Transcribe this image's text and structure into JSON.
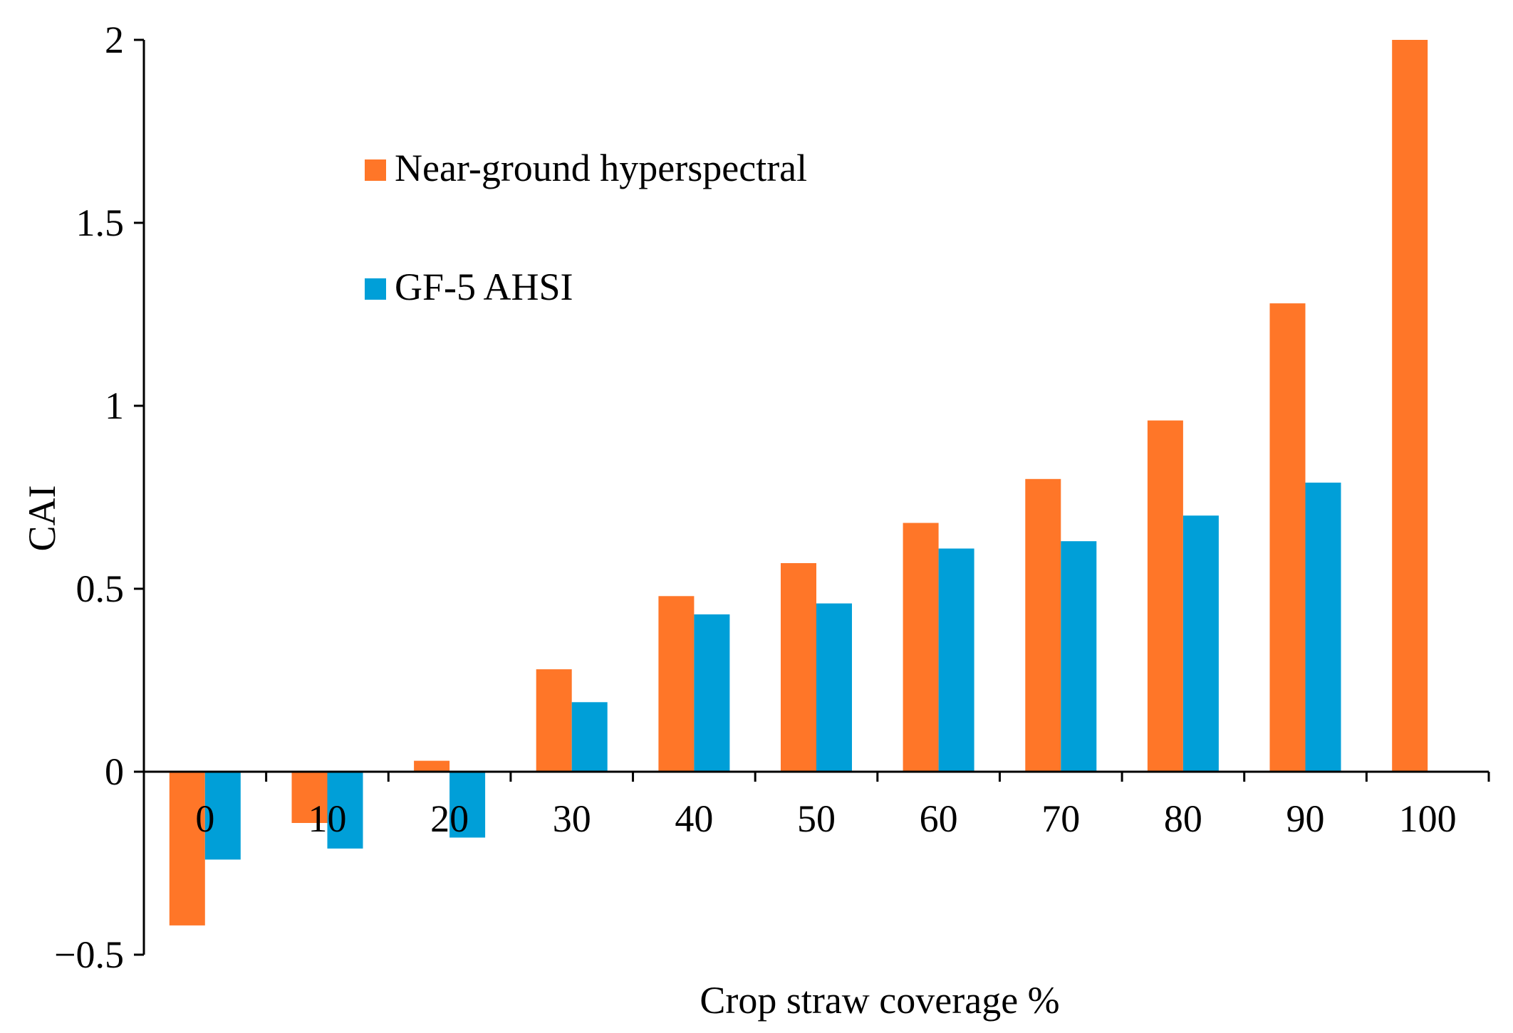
{
  "chart_data": {
    "type": "bar",
    "title": "",
    "xlabel": "Crop straw coverage %",
    "ylabel": "CAI",
    "categories": [
      "0",
      "10",
      "20",
      "30",
      "40",
      "50",
      "60",
      "70",
      "80",
      "90",
      "100"
    ],
    "series": [
      {
        "name": "Near-ground hyperspectral",
        "color": "#ff7628",
        "values": [
          -0.42,
          -0.14,
          0.03,
          0.28,
          0.48,
          0.57,
          0.68,
          0.8,
          0.96,
          1.28,
          2.0
        ]
      },
      {
        "name": "GF-5 AHSI",
        "color": "#009fd8",
        "values": [
          -0.24,
          -0.21,
          -0.18,
          0.19,
          0.43,
          0.46,
          0.61,
          0.63,
          0.7,
          0.79,
          null
        ]
      }
    ],
    "ylim": [
      -0.5,
      2
    ],
    "yticks": [
      -0.5,
      0,
      0.5,
      1,
      1.5,
      2
    ],
    "ytick_labels": [
      "−0.5",
      "0",
      "0.5",
      "1",
      "1.5",
      "2"
    ],
    "legend_position": "top-left",
    "grid": false
  }
}
